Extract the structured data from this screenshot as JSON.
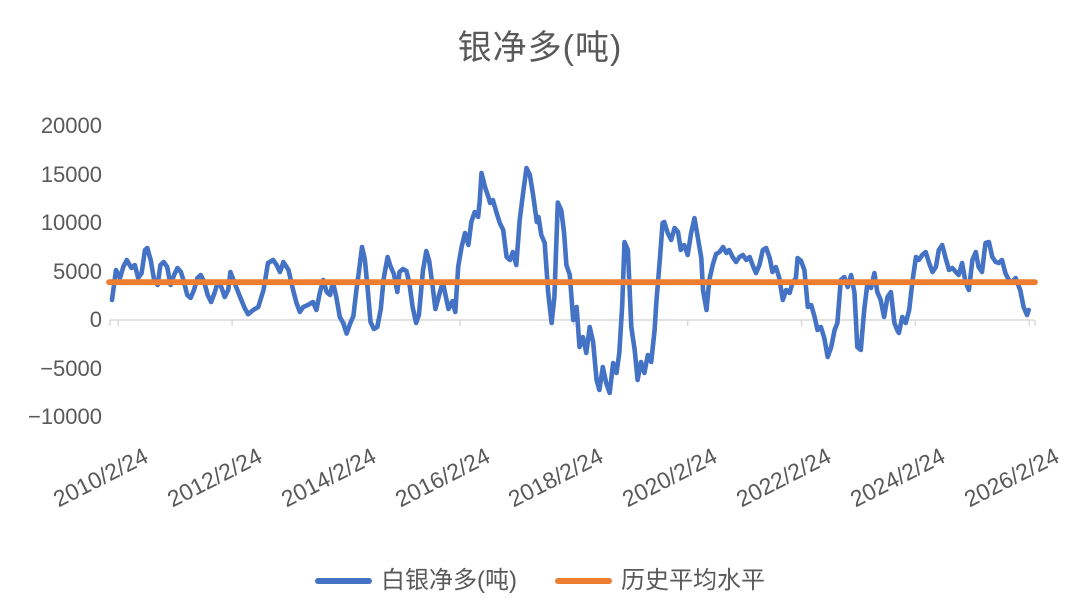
{
  "colors": {
    "series": "#4472C4",
    "average": "#ED7D31",
    "axis": "#D9D9D9",
    "text": "#595959",
    "background": "#FFFFFF"
  },
  "chart_data": {
    "type": "line",
    "title": "银净多(吨)",
    "xlabel": "",
    "ylabel": "",
    "ylim": [
      -10000,
      20000
    ],
    "grid": false,
    "legend_position": "bottom",
    "y_ticks": [
      {
        "value": 20000,
        "label": "20000"
      },
      {
        "value": 15000,
        "label": "15000"
      },
      {
        "value": 10000,
        "label": "10000"
      },
      {
        "value": 5000,
        "label": "5000"
      },
      {
        "value": 0,
        "label": "0"
      },
      {
        "value": -5000,
        "label": "−5000"
      },
      {
        "value": -10000,
        "label": "−10000"
      }
    ],
    "x_ticks": [
      {
        "t": 2010.15,
        "label": "2010/2/24"
      },
      {
        "t": 2012.15,
        "label": "2012/2/24"
      },
      {
        "t": 2014.15,
        "label": "2014/2/24"
      },
      {
        "t": 2016.15,
        "label": "2016/2/24"
      },
      {
        "t": 2018.15,
        "label": "2018/2/24"
      },
      {
        "t": 2020.15,
        "label": "2020/2/24"
      },
      {
        "t": 2022.15,
        "label": "2022/2/24"
      },
      {
        "t": 2024.15,
        "label": "2024/2/24"
      },
      {
        "t": 2026.15,
        "label": "2026/2/24"
      }
    ],
    "t_range": [
      2010.04,
      2026.25
    ],
    "series": [
      {
        "name": "白银净多(吨)",
        "color": "#4472C4",
        "type": "line",
        "points": [
          [
            2010.04,
            2060
          ],
          [
            2010.11,
            5150
          ],
          [
            2010.18,
            4330
          ],
          [
            2010.24,
            5500
          ],
          [
            2010.3,
            6190
          ],
          [
            2010.38,
            5360
          ],
          [
            2010.44,
            5670
          ],
          [
            2010.5,
            4330
          ],
          [
            2010.56,
            4840
          ],
          [
            2010.62,
            7220
          ],
          [
            2010.66,
            7420
          ],
          [
            2010.72,
            6190
          ],
          [
            2010.78,
            4120
          ],
          [
            2010.84,
            3610
          ],
          [
            2010.89,
            5670
          ],
          [
            2010.95,
            5980
          ],
          [
            2011.01,
            5460
          ],
          [
            2011.07,
            3610
          ],
          [
            2011.13,
            4640
          ],
          [
            2011.19,
            5360
          ],
          [
            2011.25,
            4950
          ],
          [
            2011.31,
            3810
          ],
          [
            2011.36,
            2580
          ],
          [
            2011.42,
            2270
          ],
          [
            2011.48,
            3090
          ],
          [
            2011.54,
            4330
          ],
          [
            2011.6,
            4640
          ],
          [
            2011.66,
            3920
          ],
          [
            2011.72,
            2580
          ],
          [
            2011.78,
            1860
          ],
          [
            2011.84,
            2780
          ],
          [
            2011.9,
            3920
          ],
          [
            2011.96,
            3400
          ],
          [
            2012.02,
            2370
          ],
          [
            2012.08,
            3090
          ],
          [
            2012.12,
            4950
          ],
          [
            2012.2,
            3700
          ],
          [
            2012.29,
            2370
          ],
          [
            2012.37,
            1230
          ],
          [
            2012.43,
            600
          ],
          [
            2012.52,
            1030
          ],
          [
            2012.61,
            1340
          ],
          [
            2012.7,
            3090
          ],
          [
            2012.78,
            5880
          ],
          [
            2012.87,
            6190
          ],
          [
            2012.93,
            5670
          ],
          [
            2012.99,
            4950
          ],
          [
            2013.05,
            5980
          ],
          [
            2013.14,
            5150
          ],
          [
            2013.22,
            3090
          ],
          [
            2013.28,
            1750
          ],
          [
            2013.34,
            820
          ],
          [
            2013.4,
            1340
          ],
          [
            2013.48,
            1550
          ],
          [
            2013.57,
            1860
          ],
          [
            2013.63,
            1030
          ],
          [
            2013.69,
            2780
          ],
          [
            2013.75,
            4120
          ],
          [
            2013.81,
            2890
          ],
          [
            2013.87,
            2580
          ],
          [
            2013.92,
            3920
          ],
          [
            2013.98,
            2370
          ],
          [
            2014.04,
            310
          ],
          [
            2014.1,
            -310
          ],
          [
            2014.16,
            -1400
          ],
          [
            2014.22,
            -410
          ],
          [
            2014.28,
            410
          ],
          [
            2014.33,
            3000
          ],
          [
            2014.38,
            5150
          ],
          [
            2014.43,
            7530
          ],
          [
            2014.48,
            6290
          ],
          [
            2014.53,
            3200
          ],
          [
            2014.58,
            -210
          ],
          [
            2014.64,
            -930
          ],
          [
            2014.7,
            -720
          ],
          [
            2014.76,
            1130
          ],
          [
            2014.81,
            4230
          ],
          [
            2014.88,
            6490
          ],
          [
            2014.93,
            5570
          ],
          [
            2014.99,
            4740
          ],
          [
            2015.05,
            2890
          ],
          [
            2015.09,
            4950
          ],
          [
            2015.15,
            5260
          ],
          [
            2015.21,
            5050
          ],
          [
            2015.26,
            3920
          ],
          [
            2015.32,
            1340
          ],
          [
            2015.38,
            -310
          ],
          [
            2015.43,
            520
          ],
          [
            2015.5,
            5050
          ],
          [
            2015.56,
            7110
          ],
          [
            2015.61,
            6080
          ],
          [
            2015.67,
            3510
          ],
          [
            2015.72,
            1130
          ],
          [
            2015.79,
            2680
          ],
          [
            2015.85,
            3920
          ],
          [
            2015.9,
            2470
          ],
          [
            2015.95,
            1130
          ],
          [
            2016.02,
            1960
          ],
          [
            2016.07,
            820
          ],
          [
            2016.12,
            5500
          ],
          [
            2016.18,
            7530
          ],
          [
            2016.24,
            8970
          ],
          [
            2016.3,
            7730
          ],
          [
            2016.35,
            10100
          ],
          [
            2016.41,
            11130
          ],
          [
            2016.47,
            10620
          ],
          [
            2016.5,
            12370
          ],
          [
            2016.53,
            15150
          ],
          [
            2016.59,
            13710
          ],
          [
            2016.65,
            12680
          ],
          [
            2016.68,
            12060
          ],
          [
            2016.73,
            12370
          ],
          [
            2016.79,
            11130
          ],
          [
            2016.85,
            10000
          ],
          [
            2016.91,
            9280
          ],
          [
            2016.97,
            6490
          ],
          [
            2017.03,
            6190
          ],
          [
            2017.08,
            7010
          ],
          [
            2017.14,
            5670
          ],
          [
            2017.2,
            10310
          ],
          [
            2017.26,
            13090
          ],
          [
            2017.32,
            15670
          ],
          [
            2017.38,
            14950
          ],
          [
            2017.44,
            12680
          ],
          [
            2017.5,
            10100
          ],
          [
            2017.53,
            10620
          ],
          [
            2017.58,
            8760
          ],
          [
            2017.64,
            7940
          ],
          [
            2017.7,
            2780
          ],
          [
            2017.76,
            -310
          ],
          [
            2017.81,
            2370
          ],
          [
            2017.87,
            12100
          ],
          [
            2017.93,
            11300
          ],
          [
            2017.98,
            8970
          ],
          [
            2018.02,
            5670
          ],
          [
            2018.08,
            4640
          ],
          [
            2018.14,
            0
          ],
          [
            2018.2,
            1340
          ],
          [
            2018.25,
            -2780
          ],
          [
            2018.31,
            -1750
          ],
          [
            2018.37,
            -3400
          ],
          [
            2018.43,
            -720
          ],
          [
            2018.49,
            -2270
          ],
          [
            2018.55,
            -6190
          ],
          [
            2018.6,
            -7220
          ],
          [
            2018.66,
            -4850
          ],
          [
            2018.72,
            -6490
          ],
          [
            2018.78,
            -7530
          ],
          [
            2018.84,
            -4430
          ],
          [
            2018.9,
            -5460
          ],
          [
            2018.95,
            -3400
          ],
          [
            2019.0,
            1500
          ],
          [
            2019.04,
            8040
          ],
          [
            2019.1,
            7220
          ],
          [
            2019.16,
            -720
          ],
          [
            2019.22,
            -3090
          ],
          [
            2019.27,
            -6190
          ],
          [
            2019.33,
            -4330
          ],
          [
            2019.39,
            -5460
          ],
          [
            2019.45,
            -3610
          ],
          [
            2019.51,
            -4330
          ],
          [
            2019.57,
            -1030
          ],
          [
            2019.6,
            1750
          ],
          [
            2019.66,
            6190
          ],
          [
            2019.71,
            10000
          ],
          [
            2019.74,
            10100
          ],
          [
            2019.8,
            8970
          ],
          [
            2019.86,
            8250
          ],
          [
            2019.92,
            9480
          ],
          [
            2019.98,
            9070
          ],
          [
            2020.03,
            7220
          ],
          [
            2020.09,
            7730
          ],
          [
            2020.15,
            6700
          ],
          [
            2020.21,
            8970
          ],
          [
            2020.27,
            10500
          ],
          [
            2020.33,
            8450
          ],
          [
            2020.39,
            6390
          ],
          [
            2020.42,
            3090
          ],
          [
            2020.48,
            1030
          ],
          [
            2020.53,
            4120
          ],
          [
            2020.59,
            5670
          ],
          [
            2020.65,
            6800
          ],
          [
            2020.71,
            7010
          ],
          [
            2020.77,
            7530
          ],
          [
            2020.83,
            6910
          ],
          [
            2020.88,
            7220
          ],
          [
            2020.94,
            6490
          ],
          [
            2021.0,
            5980
          ],
          [
            2021.06,
            6490
          ],
          [
            2021.12,
            6700
          ],
          [
            2021.18,
            6190
          ],
          [
            2021.24,
            6490
          ],
          [
            2021.29,
            5670
          ],
          [
            2021.35,
            4840
          ],
          [
            2021.41,
            5670
          ],
          [
            2021.47,
            7220
          ],
          [
            2021.53,
            7420
          ],
          [
            2021.59,
            6390
          ],
          [
            2021.64,
            4950
          ],
          [
            2021.7,
            5460
          ],
          [
            2021.76,
            4330
          ],
          [
            2021.82,
            2060
          ],
          [
            2021.88,
            3090
          ],
          [
            2021.94,
            2780
          ],
          [
            2021.99,
            3810
          ],
          [
            2022.05,
            4330
          ],
          [
            2022.08,
            6390
          ],
          [
            2022.14,
            6100
          ],
          [
            2022.2,
            5150
          ],
          [
            2022.26,
            1340
          ],
          [
            2022.32,
            1550
          ],
          [
            2022.38,
            310
          ],
          [
            2022.43,
            -1030
          ],
          [
            2022.49,
            -720
          ],
          [
            2022.55,
            -1860
          ],
          [
            2022.61,
            -3810
          ],
          [
            2022.67,
            -2780
          ],
          [
            2022.73,
            -1030
          ],
          [
            2022.78,
            -310
          ],
          [
            2022.84,
            4120
          ],
          [
            2022.9,
            4430
          ],
          [
            2022.96,
            3400
          ],
          [
            2023.02,
            4640
          ],
          [
            2023.08,
            2780
          ],
          [
            2023.13,
            -2780
          ],
          [
            2023.19,
            -3090
          ],
          [
            2023.25,
            1030
          ],
          [
            2023.31,
            3920
          ],
          [
            2023.37,
            3300
          ],
          [
            2023.43,
            4840
          ],
          [
            2023.48,
            2890
          ],
          [
            2023.54,
            2060
          ],
          [
            2023.6,
            310
          ],
          [
            2023.66,
            2370
          ],
          [
            2023.72,
            2890
          ],
          [
            2023.78,
            -310
          ],
          [
            2023.83,
            -1030
          ],
          [
            2023.86,
            -1340
          ],
          [
            2023.92,
            310
          ],
          [
            2023.98,
            -310
          ],
          [
            2024.04,
            1030
          ],
          [
            2024.1,
            4120
          ],
          [
            2024.16,
            6490
          ],
          [
            2024.21,
            6190
          ],
          [
            2024.27,
            6700
          ],
          [
            2024.33,
            7010
          ],
          [
            2024.39,
            5880
          ],
          [
            2024.45,
            4950
          ],
          [
            2024.51,
            5460
          ],
          [
            2024.56,
            7220
          ],
          [
            2024.62,
            7730
          ],
          [
            2024.68,
            6390
          ],
          [
            2024.74,
            5150
          ],
          [
            2024.8,
            5360
          ],
          [
            2024.86,
            4950
          ],
          [
            2024.91,
            4640
          ],
          [
            2024.97,
            5880
          ],
          [
            2025.03,
            3920
          ],
          [
            2025.09,
            3090
          ],
          [
            2025.15,
            6190
          ],
          [
            2025.21,
            7010
          ],
          [
            2025.26,
            5460
          ],
          [
            2025.32,
            4950
          ],
          [
            2025.38,
            7940
          ],
          [
            2025.44,
            8040
          ],
          [
            2025.5,
            6490
          ],
          [
            2025.56,
            5980
          ],
          [
            2025.61,
            5880
          ],
          [
            2025.67,
            6190
          ],
          [
            2025.73,
            4840
          ],
          [
            2025.79,
            4120
          ],
          [
            2025.85,
            3920
          ],
          [
            2025.91,
            4330
          ],
          [
            2025.99,
            3090
          ],
          [
            2026.05,
            1340
          ],
          [
            2026.11,
            520
          ],
          [
            2026.14,
            1030
          ]
        ]
      },
      {
        "name": "历史平均水平",
        "color": "#ED7D31",
        "type": "hline",
        "value": 3900
      }
    ]
  }
}
